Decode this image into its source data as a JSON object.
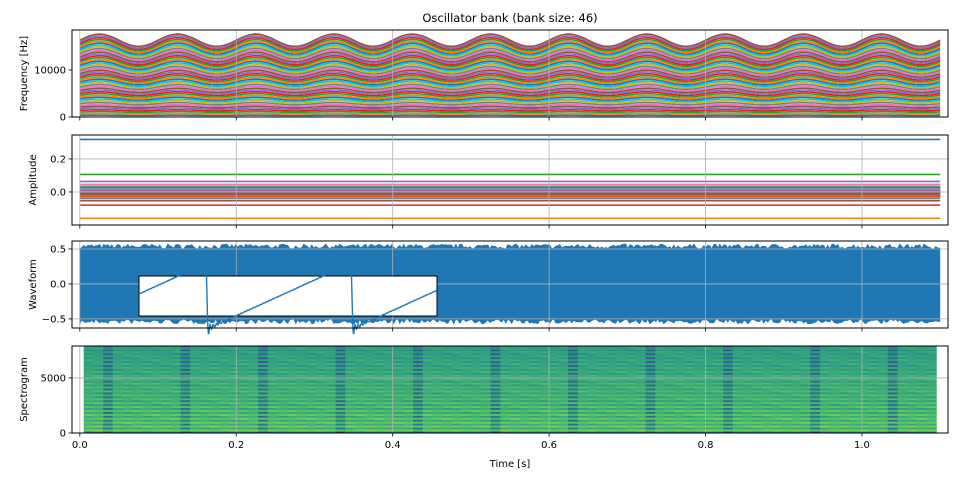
{
  "title": "Oscillator bank (bank size: 46)",
  "chart_data": [
    {
      "type": "line",
      "panel": "frequency",
      "ylabel": "Frequency [Hz]",
      "yticks": [
        "0",
        "10000"
      ],
      "ytick_values": [
        0,
        10000
      ],
      "ylim": [
        0,
        18500
      ],
      "xlim": [
        -0.01,
        1.11
      ],
      "grid": true,
      "series_count": 46,
      "center_frequencies_hz": [
        355,
        710,
        1065,
        1420,
        1775,
        2130,
        2485,
        2840,
        3195,
        3550,
        3905,
        4260,
        4615,
        4970,
        5325,
        5680,
        6035,
        6390,
        6745,
        7100,
        7455,
        7810,
        8165,
        8520,
        8875,
        9230,
        9585,
        9940,
        10295,
        10650,
        11005,
        11360,
        11715,
        12070,
        12425,
        12780,
        13135,
        13490,
        13845,
        14200,
        14555,
        14910,
        15265,
        15620,
        15975,
        16330
      ],
      "vibrato_depth": 0.08,
      "vibrato_rate_hz": 10,
      "t_range": [
        0,
        1.1
      ]
    },
    {
      "type": "line",
      "panel": "amplitude",
      "ylabel": "Amplitude",
      "yticks": [
        "0.0",
        "0.2"
      ],
      "ytick_values": [
        0.0,
        0.2
      ],
      "ylim": [
        -0.2,
        0.345
      ],
      "grid": true,
      "amplitudes": [
        0.3183,
        -0.1592,
        0.1061,
        -0.0796,
        0.0637,
        -0.0531,
        0.0455,
        -0.0398,
        0.0354,
        -0.0318,
        0.0289,
        -0.0265,
        0.0245,
        -0.0227,
        0.0212,
        -0.0199,
        0.0187,
        -0.0177,
        0.0168,
        -0.0159,
        0.0152,
        -0.0145,
        0.0138,
        -0.0133,
        0.0127,
        -0.0122,
        0.0118,
        -0.0114,
        0.011,
        -0.0106,
        0.0103,
        -0.0099,
        0.0096,
        -0.0094,
        0.0091,
        -0.0088,
        0.0086,
        -0.0084,
        0.0082,
        -0.008,
        0.0078,
        -0.0076,
        0.0074,
        -0.0072,
        0.0071,
        -0.0069
      ]
    },
    {
      "type": "line",
      "panel": "waveform",
      "ylabel": "Waveform",
      "yticks": [
        "0.5",
        "0.0",
        "−0.5"
      ],
      "ytick_values": [
        0.5,
        0.0,
        -0.5
      ],
      "ylim": [
        -0.63,
        0.614
      ],
      "grid": true,
      "envelope": [
        -0.55,
        0.55
      ],
      "color": "#1f77b4",
      "inset": {
        "shape": "sawtooth",
        "periods_shown": 2.06
      }
    },
    {
      "type": "heatmap",
      "panel": "spectrogram",
      "ylabel": "Spectrogram",
      "yticks": [
        "0",
        "5000"
      ],
      "ytick_values": [
        0,
        5000
      ],
      "ylim": [
        0,
        7900
      ],
      "colormap": "viridis",
      "grid": true
    }
  ],
  "xaxis": {
    "xlabel": "Time [s]",
    "ticks": [
      "0.0",
      "0.2",
      "0.4",
      "0.6",
      "0.8",
      "1.0"
    ],
    "tick_values": [
      0,
      0.2,
      0.4,
      0.6,
      0.8,
      1.0
    ]
  },
  "colors": [
    "#1f77b4",
    "#ff7f0e",
    "#2ca02c",
    "#d62728",
    "#9467bd",
    "#8c564b",
    "#e377c2",
    "#7f7f7f",
    "#bcbd22",
    "#17becf"
  ]
}
